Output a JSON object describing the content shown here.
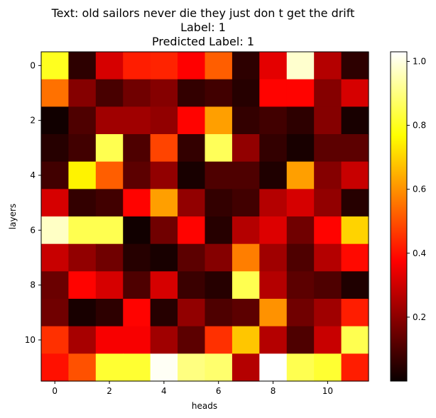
{
  "chart_data": {
    "type": "heatmap",
    "title_lines": [
      "Text: old sailors never die they just don t get the drift",
      "Label: 1",
      "Predicted Label: 1"
    ],
    "xlabel": "heads",
    "ylabel": "layers",
    "x_ticks": [
      0,
      2,
      4,
      6,
      8,
      10
    ],
    "y_ticks": [
      0,
      2,
      4,
      6,
      8,
      10
    ],
    "colormap": "hot",
    "vmin": 0.0,
    "vmax": 1.03,
    "colorbar_ticks": [
      0.2,
      0.4,
      0.6,
      0.8,
      1.0
    ],
    "colorbar_tick_labels": [
      "0.2",
      "0.4",
      "0.6",
      "0.8",
      "1.0"
    ],
    "n_rows": 12,
    "n_cols": 12,
    "values": [
      [
        0.8,
        0.05,
        0.3,
        0.42,
        0.43,
        0.36,
        0.52,
        0.05,
        0.32,
        0.98,
        0.25,
        0.05
      ],
      [
        0.55,
        0.18,
        0.09,
        0.15,
        0.18,
        0.06,
        0.08,
        0.04,
        0.38,
        0.38,
        0.18,
        0.3
      ],
      [
        0.01,
        0.1,
        0.22,
        0.22,
        0.2,
        0.38,
        0.62,
        0.06,
        0.08,
        0.05,
        0.18,
        0.02
      ],
      [
        0.04,
        0.08,
        0.85,
        0.1,
        0.48,
        0.06,
        0.86,
        0.2,
        0.06,
        0.02,
        0.12,
        0.12
      ],
      [
        0.08,
        0.75,
        0.52,
        0.12,
        0.2,
        0.02,
        0.1,
        0.1,
        0.03,
        0.62,
        0.18,
        0.28
      ],
      [
        0.3,
        0.06,
        0.08,
        0.38,
        0.62,
        0.2,
        0.06,
        0.08,
        0.25,
        0.3,
        0.2,
        0.04
      ],
      [
        0.97,
        0.85,
        0.85,
        0.01,
        0.15,
        0.38,
        0.04,
        0.25,
        0.31,
        0.15,
        0.38,
        0.7
      ],
      [
        0.28,
        0.2,
        0.15,
        0.04,
        0.02,
        0.12,
        0.18,
        0.57,
        0.22,
        0.1,
        0.25,
        0.39
      ],
      [
        0.14,
        0.38,
        0.3,
        0.1,
        0.3,
        0.07,
        0.04,
        0.85,
        0.25,
        0.12,
        0.1,
        0.03
      ],
      [
        0.15,
        0.02,
        0.05,
        0.38,
        0.04,
        0.2,
        0.1,
        0.12,
        0.6,
        0.15,
        0.22,
        0.42
      ],
      [
        0.45,
        0.23,
        0.35,
        0.35,
        0.22,
        0.12,
        0.45,
        0.68,
        0.25,
        0.1,
        0.28,
        0.85
      ],
      [
        0.4,
        0.5,
        0.82,
        0.82,
        1.02,
        0.9,
        0.88,
        0.25,
        1.03,
        0.85,
        0.82,
        0.42
      ]
    ]
  }
}
